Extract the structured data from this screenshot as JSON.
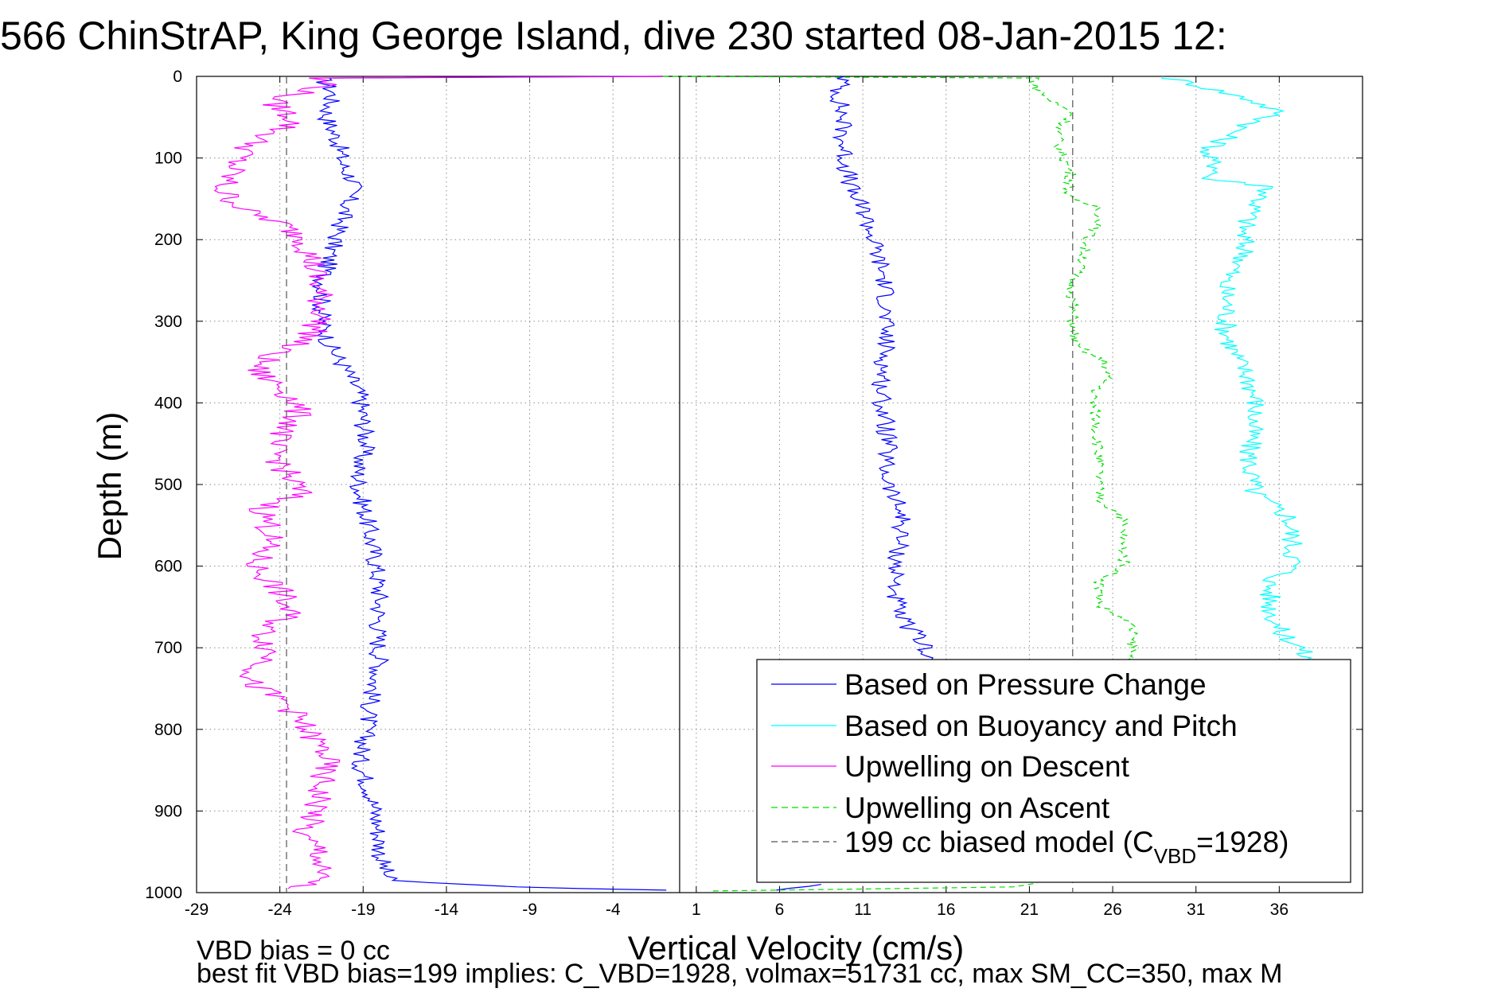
{
  "chart_data": {
    "type": "line",
    "title": "566 ChinStrAP, King George Island, dive 230 started 08-Jan-2015 12:",
    "xlabel": "Vertical Velocity (cm/s)",
    "ylabel": "Depth (m)",
    "xlim": [
      -29,
      41
    ],
    "ylim": [
      0,
      1000
    ],
    "y_reversed": true,
    "grid": true,
    "x_ticks": [
      -29,
      -24,
      -19,
      -14,
      -9,
      -4,
      1,
      6,
      11,
      16,
      21,
      26,
      31,
      36
    ],
    "y_ticks": [
      0,
      100,
      200,
      300,
      400,
      500,
      600,
      700,
      800,
      900,
      1000
    ],
    "zero_line_x": 0,
    "notes": [
      "VBD bias = 0 cc",
      "best fit VBD bias=199 implies: C_VBD=1928, volmax=51731 cc, max SM_CC=350, max M"
    ],
    "legend_position": "lower-right",
    "legend": [
      {
        "label": "Based on Pressure Change",
        "color": "#0000ff",
        "style": "solid"
      },
      {
        "label": "Based on Buoyancy and Pitch",
        "color": "#00ffff",
        "style": "solid"
      },
      {
        "label": "Upwelling on Descent",
        "color": "#ff00ff",
        "style": "solid"
      },
      {
        "label": "Upwelling on Ascent",
        "color": "#00dd00",
        "style": "dashed"
      },
      {
        "label": "199 cc biased model (C",
        "sub": "VBD",
        "suffix": "=1928)",
        "color": "#555555",
        "style": "dashed"
      }
    ],
    "series": [
      {
        "name": "Based on Pressure Change",
        "color": "#0000ff",
        "dash": "",
        "points": [
          [
            -1,
            0
          ],
          [
            -21.5,
            2
          ],
          [
            -20.8,
            20
          ],
          [
            -21.2,
            50
          ],
          [
            -20.5,
            80
          ],
          [
            -20.2,
            110
          ],
          [
            -19.5,
            130
          ],
          [
            -20,
            160
          ],
          [
            -20.5,
            190
          ],
          [
            -21,
            220
          ],
          [
            -21.4,
            250
          ],
          [
            -21.5,
            280
          ],
          [
            -21.5,
            300
          ],
          [
            -21,
            330
          ],
          [
            -20,
            360
          ],
          [
            -19.2,
            390
          ],
          [
            -19,
            420
          ],
          [
            -18.8,
            450
          ],
          [
            -19.3,
            480
          ],
          [
            -19.2,
            510
          ],
          [
            -18.8,
            540
          ],
          [
            -18.5,
            570
          ],
          [
            -18.2,
            600
          ],
          [
            -18,
            640
          ],
          [
            -18.1,
            680
          ],
          [
            -18,
            720
          ],
          [
            -18.5,
            760
          ],
          [
            -18.8,
            800
          ],
          [
            -19.2,
            840
          ],
          [
            -18.5,
            880
          ],
          [
            -18.1,
            920
          ],
          [
            -17.9,
            960
          ],
          [
            -17.5,
            985
          ],
          [
            -10,
            993
          ],
          [
            -0.8,
            997
          ]
        ],
        "points_b": [
          [
            9.9,
            0
          ],
          [
            9.5,
            20
          ],
          [
            9.8,
            50
          ],
          [
            9.8,
            80
          ],
          [
            10,
            110
          ],
          [
            10.3,
            140
          ],
          [
            11.2,
            170
          ],
          [
            11.6,
            200
          ],
          [
            12.2,
            240
          ],
          [
            12.4,
            270
          ],
          [
            12.3,
            300
          ],
          [
            12.4,
            330
          ],
          [
            12.2,
            360
          ],
          [
            12.1,
            390
          ],
          [
            12.3,
            420
          ],
          [
            12.5,
            450
          ],
          [
            12.3,
            480
          ],
          [
            12.7,
            510
          ],
          [
            13.4,
            540
          ],
          [
            13.2,
            570
          ],
          [
            13,
            600
          ],
          [
            12.9,
            630
          ],
          [
            13.1,
            660
          ],
          [
            14,
            680
          ],
          [
            14.8,
            700
          ],
          [
            15.1,
            715
          ]
        ],
        "points_c": [
          [
            5.8,
            997
          ],
          [
            8.5,
            990
          ]
        ]
      },
      {
        "name": "Based on Buoyancy and Pitch",
        "color": "#00ffff",
        "dash": "",
        "points": [
          [
            29,
            0
          ],
          [
            31,
            10
          ],
          [
            34.5,
            30
          ],
          [
            36,
            45
          ],
          [
            33.5,
            65
          ],
          [
            31.5,
            95
          ],
          [
            32.5,
            115
          ],
          [
            31.5,
            125
          ],
          [
            35.5,
            135
          ],
          [
            34.5,
            160
          ],
          [
            33.8,
            190
          ],
          [
            34,
            220
          ],
          [
            32.7,
            250
          ],
          [
            32.9,
            280
          ],
          [
            32.8,
            310
          ],
          [
            33.3,
            340
          ],
          [
            34.2,
            370
          ],
          [
            34.6,
            400
          ],
          [
            34.4,
            430
          ],
          [
            34.2,
            460
          ],
          [
            34.3,
            490
          ],
          [
            34.5,
            510
          ],
          [
            36.6,
            540
          ],
          [
            36.8,
            570
          ],
          [
            36.9,
            600
          ],
          [
            35.4,
            620
          ],
          [
            35.5,
            650
          ],
          [
            36,
            680
          ],
          [
            37.3,
            700
          ],
          [
            37.6,
            715
          ]
        ]
      },
      {
        "name": "Upwelling on Descent",
        "color": "#ff00ff",
        "dash": "",
        "points": [
          [
            -1,
            0
          ],
          [
            -22,
            2
          ],
          [
            -21,
            10
          ],
          [
            -24.5,
            30
          ],
          [
            -23,
            55
          ],
          [
            -25.5,
            80
          ],
          [
            -26.5,
            100
          ],
          [
            -27.5,
            140
          ],
          [
            -26,
            165
          ],
          [
            -24,
            180
          ],
          [
            -22.5,
            200
          ],
          [
            -22,
            230
          ],
          [
            -21.7,
            260
          ],
          [
            -21.4,
            290
          ],
          [
            -22.2,
            320
          ],
          [
            -24.5,
            340
          ],
          [
            -25.5,
            360
          ],
          [
            -24,
            380
          ],
          [
            -23,
            400
          ],
          [
            -23,
            420
          ],
          [
            -24.5,
            450
          ],
          [
            -23.8,
            480
          ],
          [
            -22.8,
            510
          ],
          [
            -25,
            530
          ],
          [
            -24.5,
            560
          ],
          [
            -25,
            580
          ],
          [
            -25.5,
            600
          ],
          [
            -24,
            630
          ],
          [
            -23.5,
            660
          ],
          [
            -25,
            680
          ],
          [
            -24.5,
            710
          ],
          [
            -26,
            740
          ],
          [
            -23.5,
            770
          ],
          [
            -22.5,
            800
          ],
          [
            -21.2,
            830
          ],
          [
            -21.5,
            860
          ],
          [
            -21.8,
            900
          ],
          [
            -22.8,
            930
          ],
          [
            -21.5,
            950
          ],
          [
            -21.8,
            975
          ],
          [
            -21.5,
            985
          ],
          [
            -23.5,
            995
          ]
        ]
      },
      {
        "name": "Upwelling on Ascent",
        "color": "#00dd00",
        "dash": "7 5",
        "points": [
          [
            -1,
            0
          ],
          [
            21.5,
            2
          ],
          [
            21.2,
            10
          ],
          [
            22.3,
            30
          ],
          [
            23.6,
            45
          ],
          [
            22.8,
            65
          ],
          [
            22.7,
            85
          ],
          [
            23.2,
            105
          ],
          [
            23.5,
            120
          ],
          [
            23.3,
            150
          ],
          [
            25.2,
            160
          ],
          [
            25.2,
            180
          ],
          [
            24.4,
            200
          ],
          [
            24.2,
            230
          ],
          [
            23.5,
            250
          ],
          [
            23.6,
            280
          ],
          [
            23.6,
            310
          ],
          [
            23.8,
            330
          ],
          [
            25.5,
            350
          ],
          [
            25.7,
            370
          ],
          [
            24.8,
            390
          ],
          [
            25,
            420
          ],
          [
            25.1,
            450
          ],
          [
            25.2,
            480
          ],
          [
            25.1,
            500
          ],
          [
            25.3,
            520
          ],
          [
            26.6,
            540
          ],
          [
            26.6,
            570
          ],
          [
            26.7,
            600
          ],
          [
            25.2,
            620
          ],
          [
            25.3,
            650
          ],
          [
            27.1,
            670
          ],
          [
            27.2,
            700
          ],
          [
            27.1,
            720
          ]
        ],
        "points_b": [
          [
            2,
            998
          ],
          [
            20,
            993
          ],
          [
            21.5,
            988
          ]
        ]
      },
      {
        "name": "199 cc biased model (CVBD=1928)",
        "color": "#555555",
        "dash": "9 6",
        "points": [
          [
            -23.6,
            0
          ],
          [
            -23.6,
            1000
          ]
        ],
        "points_b": [
          [
            23.6,
            0
          ],
          [
            23.6,
            1000
          ]
        ]
      }
    ]
  }
}
